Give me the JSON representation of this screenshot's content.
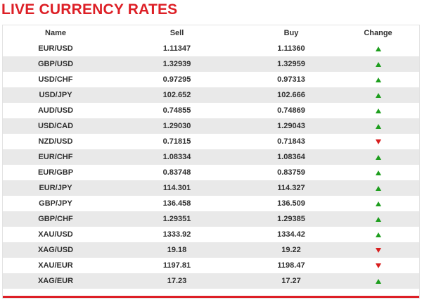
{
  "title": "LIVE CURRENCY RATES",
  "colors": {
    "title": "#dd1f26",
    "up": "#1e9e1e",
    "down": "#d81e1e",
    "stripe": "#e9e9e9"
  },
  "table": {
    "headers": {
      "name": "Name",
      "sell": "Sell",
      "buy": "Buy",
      "change": "Change"
    },
    "rows": [
      {
        "name": "EUR/USD",
        "sell": "1.11347",
        "buy": "1.11360",
        "change": "up"
      },
      {
        "name": "GBP/USD",
        "sell": "1.32939",
        "buy": "1.32959",
        "change": "up"
      },
      {
        "name": "USD/CHF",
        "sell": "0.97295",
        "buy": "0.97313",
        "change": "up"
      },
      {
        "name": "USD/JPY",
        "sell": "102.652",
        "buy": "102.666",
        "change": "up"
      },
      {
        "name": "AUD/USD",
        "sell": "0.74855",
        "buy": "0.74869",
        "change": "up"
      },
      {
        "name": "USD/CAD",
        "sell": "1.29030",
        "buy": "1.29043",
        "change": "up"
      },
      {
        "name": "NZD/USD",
        "sell": "0.71815",
        "buy": "0.71843",
        "change": "down"
      },
      {
        "name": "EUR/CHF",
        "sell": "1.08334",
        "buy": "1.08364",
        "change": "up"
      },
      {
        "name": "EUR/GBP",
        "sell": "0.83748",
        "buy": "0.83759",
        "change": "up"
      },
      {
        "name": "EUR/JPY",
        "sell": "114.301",
        "buy": "114.327",
        "change": "up"
      },
      {
        "name": "GBP/JPY",
        "sell": "136.458",
        "buy": "136.509",
        "change": "up"
      },
      {
        "name": "GBP/CHF",
        "sell": "1.29351",
        "buy": "1.29385",
        "change": "up"
      },
      {
        "name": "XAU/USD",
        "sell": "1333.92",
        "buy": "1334.42",
        "change": "up"
      },
      {
        "name": "XAG/USD",
        "sell": "19.18",
        "buy": "19.22",
        "change": "down"
      },
      {
        "name": "XAU/EUR",
        "sell": "1197.81",
        "buy": "1198.47",
        "change": "down"
      },
      {
        "name": "XAG/EUR",
        "sell": "17.23",
        "buy": "17.27",
        "change": "up"
      }
    ]
  }
}
